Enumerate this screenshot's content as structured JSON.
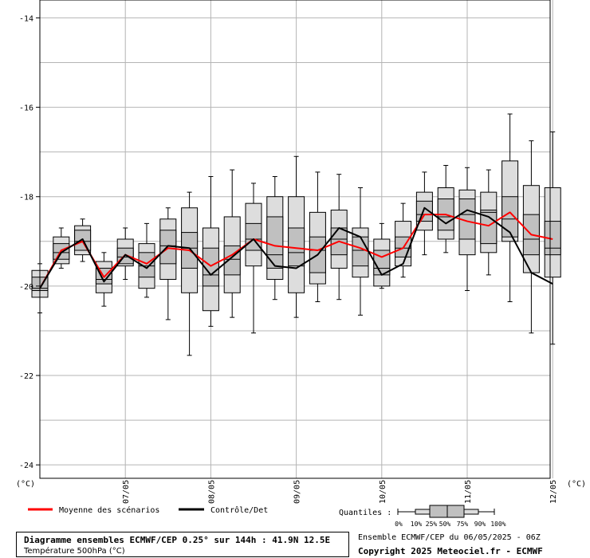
{
  "chart_data": {
    "type": "boxplot",
    "y_unit_label": "(°C)",
    "ylim": [
      -24.3,
      -13.6
    ],
    "y_ticks": [
      "-14",
      "-16",
      "-18",
      "-20",
      "-22",
      "-24"
    ],
    "y_tick_values": [
      -14,
      -16,
      -18,
      -20,
      -22,
      -24
    ],
    "x_tick_labels": [
      "07/05",
      "08/05",
      "09/05",
      "10/05",
      "11/05",
      "12/05"
    ],
    "x_tick_steps": [
      8,
      16,
      24,
      32,
      40,
      48
    ],
    "step_hours": 3,
    "grid": true,
    "boxes": [
      {
        "step": 0,
        "q0": -20.6,
        "q10": -20.25,
        "q25": -20.1,
        "q50": -20.05,
        "q75": -19.8,
        "q90": -19.65,
        "q100": -19.5
      },
      {
        "step": 2,
        "q0": -19.6,
        "q10": -19.5,
        "q25": -19.4,
        "q50": -19.25,
        "q75": -19.05,
        "q90": -18.9,
        "q100": -18.7
      },
      {
        "step": 4,
        "q0": -19.45,
        "q10": -19.3,
        "q25": -19.2,
        "q50": -19.0,
        "q75": -18.75,
        "q90": -18.65,
        "q100": -18.5
      },
      {
        "step": 6,
        "q0": -20.45,
        "q10": -20.15,
        "q25": -19.95,
        "q50": -19.85,
        "q75": -19.6,
        "q90": -19.45,
        "q100": -19.25
      },
      {
        "step": 8,
        "q0": -19.85,
        "q10": -19.55,
        "q25": -19.5,
        "q50": -19.35,
        "q75": -19.15,
        "q90": -18.95,
        "q100": -18.7
      },
      {
        "step": 10,
        "q0": -20.25,
        "q10": -20.05,
        "q25": -19.8,
        "q50": -19.55,
        "q75": -19.25,
        "q90": -19.05,
        "q100": -18.6
      },
      {
        "step": 12,
        "q0": -20.75,
        "q10": -19.85,
        "q25": -19.5,
        "q50": -19.1,
        "q75": -18.75,
        "q90": -18.5,
        "q100": -18.25
      },
      {
        "step": 14,
        "q0": -21.55,
        "q10": -20.15,
        "q25": -19.6,
        "q50": -19.15,
        "q75": -18.8,
        "q90": -18.25,
        "q100": -17.9
      },
      {
        "step": 16,
        "q0": -20.9,
        "q10": -20.55,
        "q25": -20.0,
        "q50": -19.75,
        "q75": -19.15,
        "q90": -18.7,
        "q100": -17.55
      },
      {
        "step": 18,
        "q0": -20.7,
        "q10": -20.15,
        "q25": -19.75,
        "q50": -19.4,
        "q75": -19.1,
        "q90": -18.45,
        "q100": -17.4
      },
      {
        "step": 20,
        "q0": -21.05,
        "q10": -19.55,
        "q25": -19.2,
        "q50": -18.95,
        "q75": -18.6,
        "q90": -18.15,
        "q100": -17.7
      },
      {
        "step": 22,
        "q0": -20.3,
        "q10": -19.85,
        "q25": -19.6,
        "q50": -19.3,
        "q75": -18.45,
        "q90": -18.0,
        "q100": -17.55
      },
      {
        "step": 24,
        "q0": -20.7,
        "q10": -20.15,
        "q25": -19.55,
        "q50": -19.25,
        "q75": -18.7,
        "q90": -18.0,
        "q100": -17.1
      },
      {
        "step": 26,
        "q0": -20.35,
        "q10": -19.95,
        "q25": -19.7,
        "q50": -19.2,
        "q75": -18.9,
        "q90": -18.35,
        "q100": -17.45
      },
      {
        "step": 28,
        "q0": -20.3,
        "q10": -19.6,
        "q25": -19.3,
        "q50": -18.95,
        "q75": -18.7,
        "q90": -18.3,
        "q100": -17.5
      },
      {
        "step": 30,
        "q0": -20.65,
        "q10": -19.8,
        "q25": -19.55,
        "q50": -19.2,
        "q75": -18.9,
        "q90": -18.7,
        "q100": -17.8
      },
      {
        "step": 32,
        "q0": -20.05,
        "q10": -20.0,
        "q25": -19.75,
        "q50": -19.6,
        "q75": -19.2,
        "q90": -18.95,
        "q100": -18.6
      },
      {
        "step": 34,
        "q0": -19.8,
        "q10": -19.55,
        "q25": -19.35,
        "q50": -19.15,
        "q75": -18.9,
        "q90": -18.55,
        "q100": -18.15
      },
      {
        "step": 36,
        "q0": -19.3,
        "q10": -18.75,
        "q25": -18.55,
        "q50": -18.4,
        "q75": -18.1,
        "q90": -17.9,
        "q100": -17.45
      },
      {
        "step": 38,
        "q0": -19.25,
        "q10": -18.95,
        "q25": -18.75,
        "q50": -18.45,
        "q75": -18.05,
        "q90": -17.8,
        "q100": -17.3
      },
      {
        "step": 40,
        "q0": -20.1,
        "q10": -19.3,
        "q25": -18.95,
        "q50": -18.4,
        "q75": -18.05,
        "q90": -17.85,
        "q100": -17.35
      },
      {
        "step": 42,
        "q0": -19.75,
        "q10": -19.25,
        "q25": -19.05,
        "q50": -18.35,
        "q75": -18.3,
        "q90": -17.9,
        "q100": -17.4
      },
      {
        "step": 44,
        "q0": -20.35,
        "q10": -19.0,
        "q25": -18.9,
        "q50": -18.5,
        "q75": -18.0,
        "q90": -17.2,
        "q100": -16.15
      },
      {
        "step": 46,
        "q0": -21.05,
        "q10": -19.7,
        "q25": -19.3,
        "q50": -18.95,
        "q75": -18.4,
        "q90": -17.75,
        "q100": -16.75
      },
      {
        "step": 48,
        "q0": -21.3,
        "q10": -19.8,
        "q25": -19.3,
        "q50": -19.15,
        "q75": -18.55,
        "q90": -17.8,
        "q100": -16.55
      }
    ],
    "series": [
      {
        "name": "Moyenne des scénarios",
        "color": "#ff0000",
        "values": [
          [
            0,
            -20.05
          ],
          [
            2,
            -19.2
          ],
          [
            4,
            -19.0
          ],
          [
            6,
            -19.8
          ],
          [
            8,
            -19.3
          ],
          [
            10,
            -19.5
          ],
          [
            12,
            -19.15
          ],
          [
            14,
            -19.2
          ],
          [
            16,
            -19.55
          ],
          [
            18,
            -19.3
          ],
          [
            20,
            -18.95
          ],
          [
            22,
            -19.1
          ],
          [
            24,
            -19.15
          ],
          [
            26,
            -19.2
          ],
          [
            28,
            -19.0
          ],
          [
            30,
            -19.15
          ],
          [
            32,
            -19.35
          ],
          [
            34,
            -19.15
          ],
          [
            36,
            -18.4
          ],
          [
            38,
            -18.4
          ],
          [
            40,
            -18.55
          ],
          [
            42,
            -18.65
          ],
          [
            44,
            -18.35
          ],
          [
            46,
            -18.85
          ],
          [
            48,
            -18.95
          ]
        ]
      },
      {
        "name": "Contrôle/Det",
        "color": "#000000",
        "values": [
          [
            0,
            -20.05
          ],
          [
            2,
            -19.25
          ],
          [
            4,
            -18.95
          ],
          [
            6,
            -19.9
          ],
          [
            8,
            -19.3
          ],
          [
            10,
            -19.6
          ],
          [
            12,
            -19.1
          ],
          [
            14,
            -19.15
          ],
          [
            16,
            -19.75
          ],
          [
            18,
            -19.35
          ],
          [
            20,
            -18.95
          ],
          [
            22,
            -19.55
          ],
          [
            24,
            -19.6
          ],
          [
            26,
            -19.3
          ],
          [
            28,
            -18.7
          ],
          [
            30,
            -18.9
          ],
          [
            32,
            -19.75
          ],
          [
            34,
            -19.5
          ],
          [
            36,
            -18.25
          ],
          [
            38,
            -18.6
          ],
          [
            40,
            -18.3
          ],
          [
            42,
            -18.45
          ],
          [
            44,
            -18.8
          ],
          [
            46,
            -19.7
          ],
          [
            48,
            -19.95
          ]
        ]
      }
    ]
  },
  "legend": {
    "mean_label": "Moyenne des scénarios",
    "control_label": "Contrôle/Det",
    "quantiles_label": "Quantiles :",
    "quantile_names": [
      "0%",
      "10%",
      "25%",
      "50%",
      "75%",
      "90%",
      "100%"
    ]
  },
  "info": {
    "title": "Diagramme ensembles ECMWF/CEP 0.25° sur 144h : 41.9N 12.5E",
    "subtitle": "Température 500hPa (°C)",
    "run": "Ensemble ECMWF/CEP du 06/05/2025 - 06Z",
    "copyright": "Copyright 2025 Meteociel.fr - ECMWF"
  },
  "colors": {
    "mean": "#ff0000",
    "control": "#000000",
    "box_fill": "#c0c0c0",
    "whisker_fill": "#dddddd",
    "grid": "#b4b4b4"
  }
}
